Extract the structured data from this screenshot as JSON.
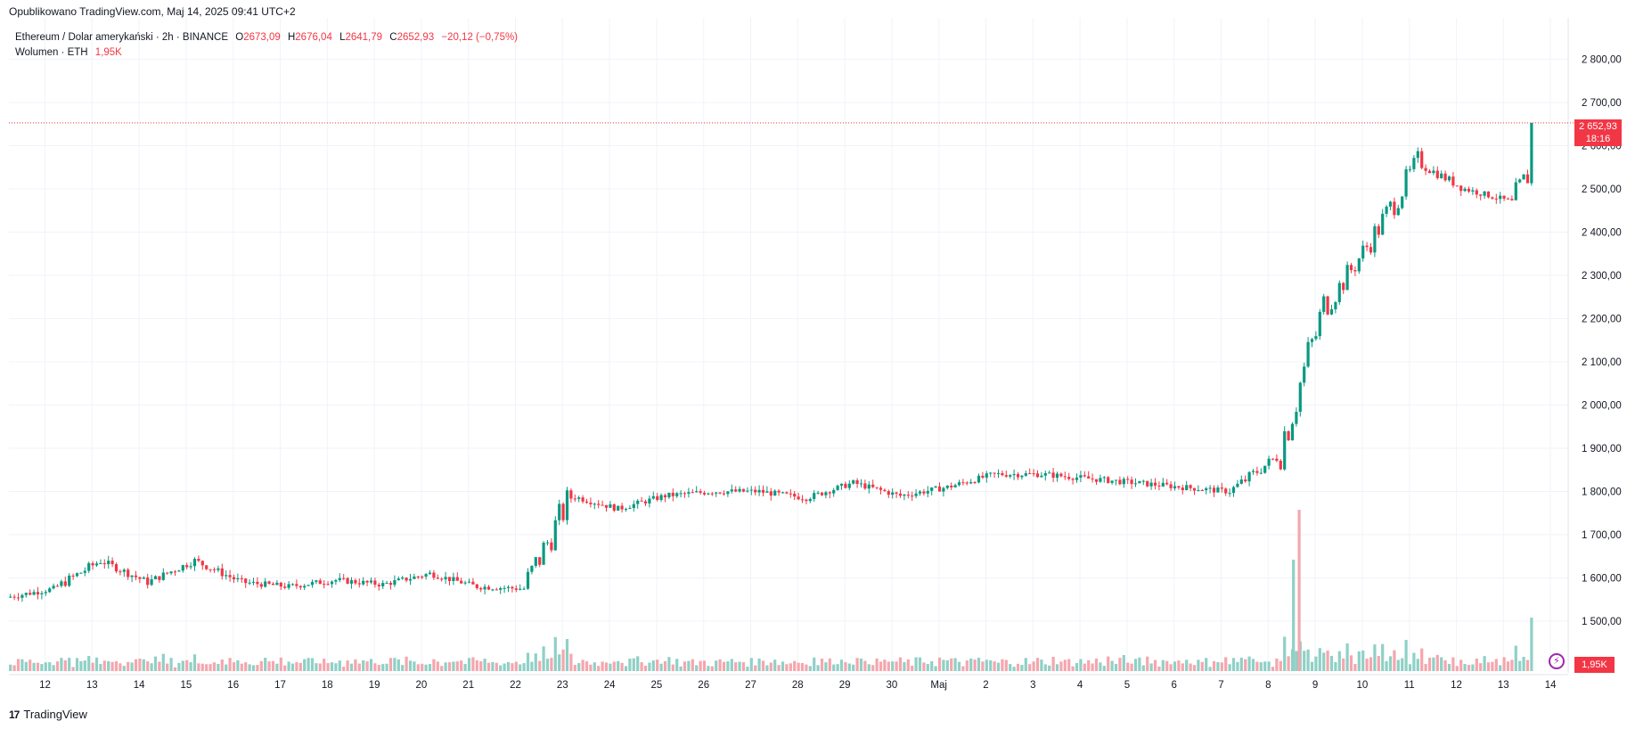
{
  "header": {
    "published": "Opublikowano TradingView.com, Maj 14, 2025 09:41 UTC+2"
  },
  "legend": {
    "symbol": "Ethereum / Dolar amerykański · 2h · BINANCE",
    "o_label": "O",
    "o_value": "2673,09",
    "h_label": "H",
    "h_value": "2676,04",
    "l_label": "L",
    "l_value": "2641,79",
    "c_label": "C",
    "c_value": "2652,93",
    "change": "−20,12 (−0,75%)",
    "volume_label": "Wolumen · ETH",
    "volume_value": "1,95K"
  },
  "price_tag": {
    "price": "2 652,93",
    "countdown": "18:16"
  },
  "volume_tag": "1,95K",
  "brand": {
    "logo": "17",
    "name": "TradingView"
  },
  "colors": {
    "up": "#089981",
    "down": "#f23645",
    "up_vol": "#8fd0c6",
    "down_vol": "#f5a6ad",
    "grid": "#f0f3fa",
    "text": "#131722"
  },
  "chart_data": {
    "type": "candlestick",
    "title": "Ethereum / Dolar amerykański · 2h · BINANCE",
    "x_ticks": [
      "12",
      "13",
      "14",
      "15",
      "16",
      "17",
      "18",
      "19",
      "20",
      "21",
      "22",
      "23",
      "24",
      "25",
      "26",
      "27",
      "28",
      "29",
      "30",
      "Maj",
      "2",
      "3",
      "4",
      "5",
      "6",
      "7",
      "8",
      "9",
      "10",
      "11",
      "12",
      "13",
      "14"
    ],
    "y_ticks": [
      "1 500,00",
      "1 600,00",
      "1 700,00",
      "1 800,00",
      "1 900,00",
      "2 000,00",
      "2 100,00",
      "2 200,00",
      "2 300,00",
      "2 400,00",
      "2 500,00",
      "2 600,00",
      "2 700,00",
      "2 800,00"
    ],
    "y_tick_values": [
      1500,
      1600,
      1700,
      1800,
      1900,
      2000,
      2100,
      2200,
      2300,
      2400,
      2500,
      2600,
      2700,
      2800
    ],
    "ylim": [
      1460,
      2850
    ],
    "current_price": 2652.93,
    "price_series_daily": [
      {
        "x": "11",
        "close": 1555
      },
      {
        "x": "12",
        "close": 1575
      },
      {
        "x": "13",
        "close": 1640
      },
      {
        "x": "14",
        "close": 1590
      },
      {
        "x": "15",
        "close": 1640
      },
      {
        "x": "16",
        "close": 1590
      },
      {
        "x": "17",
        "close": 1580
      },
      {
        "x": "18",
        "close": 1595
      },
      {
        "x": "19",
        "close": 1585
      },
      {
        "x": "20",
        "close": 1610
      },
      {
        "x": "21",
        "close": 1580
      },
      {
        "x": "22",
        "close": 1575
      },
      {
        "x": "23",
        "close": 1790
      },
      {
        "x": "24",
        "close": 1760
      },
      {
        "x": "25",
        "close": 1790
      },
      {
        "x": "26",
        "close": 1800
      },
      {
        "x": "27",
        "close": 1800
      },
      {
        "x": "28",
        "close": 1785
      },
      {
        "x": "29",
        "close": 1820
      },
      {
        "x": "30",
        "close": 1790
      },
      {
        "x": "Maj",
        "close": 1810
      },
      {
        "x": "2",
        "close": 1840
      },
      {
        "x": "3",
        "close": 1840
      },
      {
        "x": "4",
        "close": 1830
      },
      {
        "x": "5",
        "close": 1820
      },
      {
        "x": "6",
        "close": 1810
      },
      {
        "x": "7",
        "close": 1800
      },
      {
        "x": "8",
        "close": 1880
      },
      {
        "x": "9",
        "close": 2220
      },
      {
        "x": "10",
        "close": 2380
      },
      {
        "x": "11",
        "close": 2560
      },
      {
        "x": "12",
        "close": 2500
      },
      {
        "x": "13",
        "close": 2470
      },
      {
        "x": "14",
        "close": 2652.93
      }
    ],
    "volume_peak": {
      "x": "9",
      "approx_eth_ratio_to_latest": 4.6
    },
    "volume_latest": "1,95K"
  }
}
